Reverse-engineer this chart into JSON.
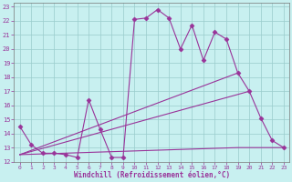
{
  "xlabel": "Windchill (Refroidissement éolien,°C)",
  "background_color": "#c8f0f0",
  "grid_color": "#99cccc",
  "line_color": "#993399",
  "xlim": [
    -0.5,
    23.5
  ],
  "ylim": [
    12,
    23.3
  ],
  "xticks": [
    0,
    1,
    2,
    3,
    4,
    5,
    6,
    7,
    8,
    9,
    10,
    11,
    12,
    13,
    14,
    15,
    16,
    17,
    18,
    19,
    20,
    21,
    22,
    23
  ],
  "yticks": [
    12,
    13,
    14,
    15,
    16,
    17,
    18,
    19,
    20,
    21,
    22,
    23
  ],
  "line1_x": [
    0,
    1,
    2,
    3,
    4,
    5,
    6,
    7,
    8,
    9,
    10,
    11,
    12,
    13,
    14,
    15,
    16,
    17,
    18,
    19,
    20,
    21,
    22,
    23
  ],
  "line1_y": [
    14.5,
    13.2,
    12.6,
    12.6,
    12.5,
    12.3,
    16.4,
    14.3,
    12.3,
    12.3,
    22.1,
    22.2,
    22.8,
    22.2,
    20.0,
    21.7,
    19.2,
    21.2,
    20.7,
    18.3,
    17.0,
    15.1,
    13.5,
    13.0
  ],
  "line2_x": [
    0,
    19
  ],
  "line2_y": [
    12.5,
    18.3
  ],
  "line3_x": [
    0,
    20
  ],
  "line3_y": [
    12.5,
    17.0
  ],
  "line4_x": [
    0,
    19,
    23
  ],
  "line4_y": [
    12.5,
    13.0,
    13.0
  ]
}
